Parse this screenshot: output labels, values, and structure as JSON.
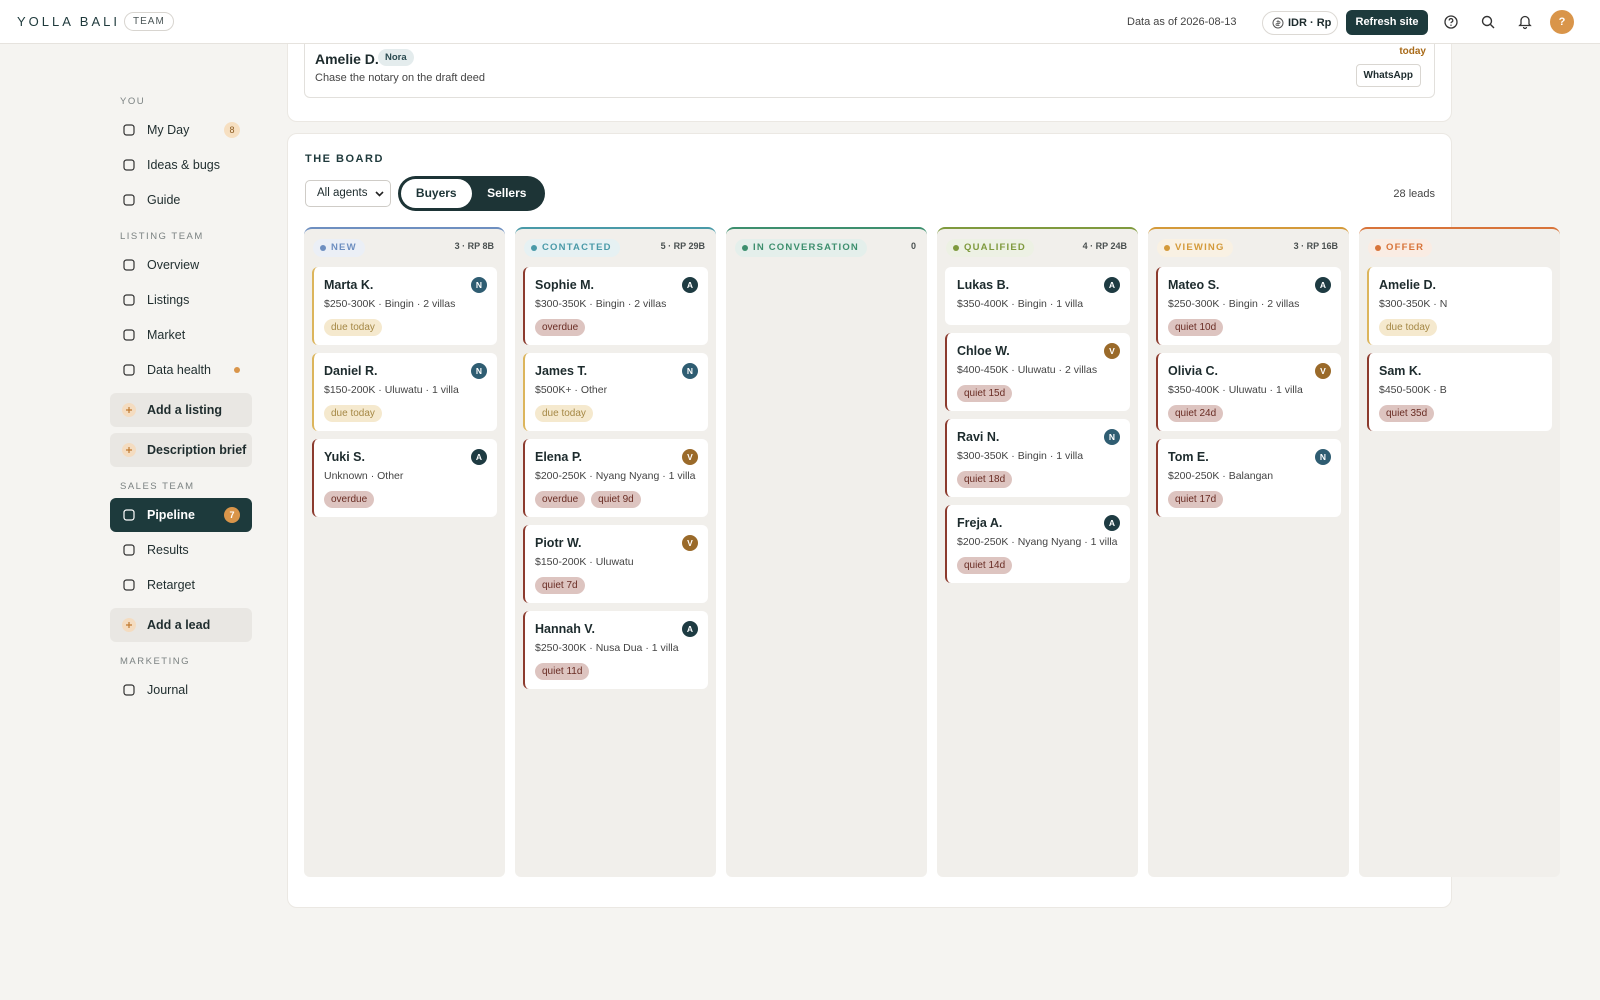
{
  "header": {
    "brand": "YOLLA BALI",
    "badge": "TEAM",
    "data_as_of": "Data as of 2026-08-13",
    "currency": "IDR · Rp",
    "refresh": "Refresh site",
    "avatar": "?"
  },
  "sidebar": {
    "sections": [
      {
        "label": "YOU",
        "items": [
          {
            "label": "My Day",
            "badge": "8"
          },
          {
            "label": "Ideas & bugs"
          },
          {
            "label": "Guide"
          }
        ]
      },
      {
        "label": "LISTING TEAM",
        "items": [
          {
            "label": "Overview"
          },
          {
            "label": "Listings"
          },
          {
            "label": "Market"
          },
          {
            "label": "Data health",
            "dot": true
          },
          {
            "label": "Add a listing",
            "action": true
          },
          {
            "label": "Description brief",
            "action": true
          }
        ]
      },
      {
        "label": "SALES TEAM",
        "items": [
          {
            "label": "Pipeline",
            "badge": "7",
            "active": true
          },
          {
            "label": "Results"
          },
          {
            "label": "Retarget"
          },
          {
            "label": "Add a lead",
            "action": true
          }
        ]
      },
      {
        "label": "MARKETING",
        "items": [
          {
            "label": "Journal"
          }
        ]
      }
    ]
  },
  "task": {
    "name": "Amelie D.",
    "agent": "Nora",
    "note": "Chase the notary on the draft deed",
    "due": "today",
    "action": "WhatsApp"
  },
  "board": {
    "title": "THE BOARD",
    "agent_filter": "All agents",
    "toggle": [
      "Buyers",
      "Sellers"
    ],
    "active_toggle": 0,
    "lead_count": "28 leads",
    "avatar_colors": {
      "A": "#1e3b42",
      "N": "#2f5d72",
      "V": "#9a6a2a"
    },
    "columns": [
      {
        "label": "NEW",
        "meta": "3 · RP 8B",
        "color": "#6e8fc0",
        "cards": [
          {
            "name": "Marta K.",
            "detail": "$250-300K · Bingin · 2 villas",
            "avatar": "N",
            "accent": "#dcb55c",
            "tags": [
              "due today"
            ]
          },
          {
            "name": "Daniel R.",
            "detail": "$150-200K · Uluwatu · 1 villa",
            "avatar": "N",
            "accent": "#dcb55c",
            "tags": [
              "due today"
            ]
          },
          {
            "name": "Yuki S.",
            "detail": "Unknown · Other",
            "avatar": "A",
            "accent": "#8c3b2e",
            "tags": [
              "overdue"
            ]
          }
        ]
      },
      {
        "label": "CONTACTED",
        "meta": "5 · RP 29B",
        "color": "#4a9aa8",
        "cards": [
          {
            "name": "Sophie M.",
            "detail": "$300-350K · Bingin · 2 villas",
            "avatar": "A",
            "accent": "#8c3b2e",
            "tags": [
              "overdue"
            ]
          },
          {
            "name": "James T.",
            "detail": "$500K+ · Other",
            "avatar": "N",
            "accent": "#dcb55c",
            "tags": [
              "due today"
            ]
          },
          {
            "name": "Elena P.",
            "detail": "$200-250K · Nyang Nyang · 1 villa",
            "avatar": "V",
            "accent": "#8c3b2e",
            "tags": [
              "overdue",
              "quiet 9d"
            ]
          },
          {
            "name": "Piotr W.",
            "detail": "$150-200K · Uluwatu",
            "avatar": "V",
            "accent": "#8c3b2e",
            "tags": [
              "quiet 7d"
            ]
          },
          {
            "name": "Hannah V.",
            "detail": "$250-300K · Nusa Dua · 1 villa",
            "avatar": "A",
            "accent": "#8c3b2e",
            "tags": [
              "quiet 11d"
            ]
          }
        ]
      },
      {
        "label": "IN CONVERSATION",
        "meta": "0",
        "color": "#3d8f6e",
        "cards": []
      },
      {
        "label": "QUALIFIED",
        "meta": "4 · RP 24B",
        "color": "#7f9a3e",
        "cards": [
          {
            "name": "Lukas B.",
            "detail": "$350-400K · Bingin · 1 villa",
            "avatar": "A",
            "tags": []
          },
          {
            "name": "Chloe W.",
            "detail": "$400-450K · Uluwatu · 2 villas",
            "avatar": "V",
            "accent": "#8c3b2e",
            "tags": [
              "quiet 15d"
            ]
          },
          {
            "name": "Ravi N.",
            "detail": "$300-350K · Bingin · 1 villa",
            "avatar": "N",
            "accent": "#8c3b2e",
            "tags": [
              "quiet 18d"
            ]
          },
          {
            "name": "Freja A.",
            "detail": "$200-250K · Nyang Nyang · 1 villa",
            "avatar": "A",
            "accent": "#8c3b2e",
            "tags": [
              "quiet 14d"
            ]
          }
        ]
      },
      {
        "label": "VIEWING",
        "meta": "3 · RP 16B",
        "color": "#d49a3a",
        "cards": [
          {
            "name": "Mateo S.",
            "detail": "$250-300K · Bingin · 2 villas",
            "avatar": "A",
            "accent": "#8c3b2e",
            "tags": [
              "quiet 10d"
            ]
          },
          {
            "name": "Olivia C.",
            "detail": "$350-400K · Uluwatu · 1 villa",
            "avatar": "V",
            "accent": "#8c3b2e",
            "tags": [
              "quiet 24d"
            ]
          },
          {
            "name": "Tom E.",
            "detail": "$200-250K · Balangan",
            "avatar": "N",
            "accent": "#8c3b2e",
            "tags": [
              "quiet 17d"
            ]
          }
        ]
      },
      {
        "label": "OFFER",
        "color": "#d8743a",
        "cards": [
          {
            "name": "Amelie D.",
            "detail": "$300-350K · N",
            "accent": "#dcb55c",
            "tags": [
              "due today"
            ]
          },
          {
            "name": "Sam K.",
            "detail": "$450-500K · B",
            "accent": "#8c3b2e",
            "tags": [
              "quiet 35d"
            ]
          }
        ]
      }
    ]
  }
}
